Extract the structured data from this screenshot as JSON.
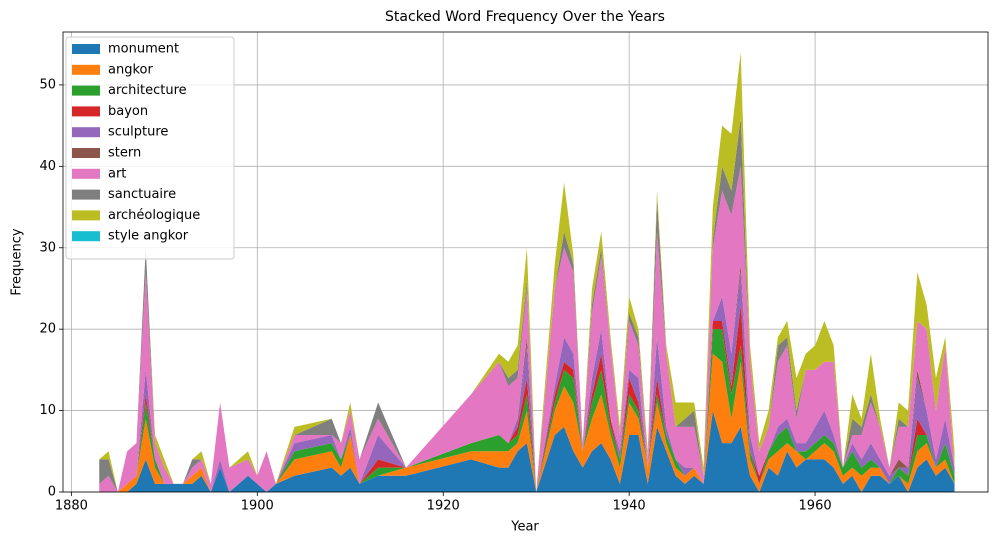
{
  "chart_data": {
    "type": "area",
    "stacked": true,
    "title": "Stacked Word Frequency Over the Years",
    "x_label": "Year",
    "y_label": "Frequency",
    "x": [
      1883,
      1884,
      1885,
      1886,
      1887,
      1888,
      1889,
      1890,
      1891,
      1892,
      1893,
      1894,
      1895,
      1896,
      1897,
      1899,
      1900,
      1901,
      1902,
      1904,
      1908,
      1909,
      1910,
      1911,
      1913,
      1916,
      1923,
      1926,
      1927,
      1928,
      1929,
      1930,
      1932,
      1933,
      1934,
      1935,
      1936,
      1937,
      1938,
      1939,
      1940,
      1941,
      1942,
      1943,
      1944,
      1945,
      1946,
      1947,
      1948,
      1949,
      1950,
      1951,
      1952,
      1953,
      1954,
      1955,
      1956,
      1957,
      1958,
      1959,
      1960,
      1961,
      1962,
      1963,
      1964,
      1965,
      1966,
      1967,
      1968,
      1969,
      1970,
      1971,
      1972,
      1973,
      1974,
      1975
    ],
    "series": [
      {
        "name": "monument",
        "color": "#1f77b4",
        "values": [
          0,
          0,
          0,
          0,
          1,
          4,
          1,
          1,
          1,
          1,
          1,
          2,
          0,
          3,
          0,
          2,
          1,
          0,
          1,
          2,
          3,
          2,
          3,
          1,
          2,
          2,
          4,
          3,
          3,
          5,
          6,
          0,
          7,
          8,
          5,
          3,
          5,
          6,
          4,
          1,
          7,
          7,
          1,
          8,
          5,
          2,
          1,
          2,
          1,
          10,
          6,
          6,
          8,
          2,
          0,
          3,
          2,
          5,
          3,
          4,
          4,
          4,
          3,
          1,
          2,
          0,
          2,
          2,
          1,
          2,
          0,
          3,
          4,
          2,
          3,
          1
        ]
      },
      {
        "name": "angkor",
        "color": "#ff7f0e",
        "values": [
          0,
          0,
          0,
          1,
          1,
          5,
          2,
          0,
          0,
          0,
          1,
          1,
          0,
          0,
          0,
          0,
          0,
          0,
          0,
          2,
          2,
          1,
          4,
          0,
          0,
          1,
          1,
          2,
          2,
          1,
          4,
          0,
          3,
          5,
          6,
          2,
          4,
          6,
          3,
          2,
          4,
          2,
          2,
          3,
          1,
          1,
          1,
          1,
          0,
          7,
          10,
          3,
          8,
          2,
          1,
          1,
          3,
          1,
          2,
          0,
          1,
          2,
          2,
          1,
          1,
          2,
          1,
          1,
          0,
          0,
          1,
          2,
          2,
          1,
          1,
          0
        ]
      },
      {
        "name": "architecture",
        "color": "#2ca02c",
        "values": [
          0,
          0,
          0,
          0,
          0,
          2,
          1,
          0,
          0,
          0,
          0,
          0,
          0,
          0,
          0,
          0,
          0,
          0,
          0,
          1,
          1,
          1,
          0,
          0,
          1,
          0,
          1,
          2,
          1,
          1,
          2,
          0,
          1,
          2,
          3,
          0,
          2,
          3,
          1,
          1,
          1,
          1,
          0,
          1,
          1,
          1,
          0,
          0,
          0,
          3,
          4,
          3,
          2,
          1,
          0,
          1,
          2,
          2,
          0,
          1,
          1,
          1,
          1,
          1,
          2,
          1,
          1,
          0,
          0,
          1,
          1,
          2,
          1,
          0,
          2,
          1
        ]
      },
      {
        "name": "bayon",
        "color": "#d62728",
        "values": [
          0,
          0,
          0,
          0,
          0,
          1,
          0,
          0,
          0,
          0,
          0,
          0,
          0,
          0,
          0,
          0,
          0,
          0,
          0,
          0,
          0,
          0,
          0,
          0,
          1,
          0,
          0,
          0,
          0,
          1,
          2,
          0,
          1,
          1,
          1,
          0,
          1,
          2,
          1,
          0,
          2,
          1,
          0,
          2,
          0,
          0,
          0,
          0,
          0,
          1,
          1,
          1,
          5,
          0,
          1,
          0,
          0,
          0,
          0,
          0,
          0,
          0,
          0,
          0,
          0,
          0,
          0,
          0,
          0,
          0,
          0,
          2,
          0,
          0,
          0,
          0
        ]
      },
      {
        "name": "sculpture",
        "color": "#9467bd",
        "values": [
          0,
          0,
          0,
          0,
          0,
          3,
          0,
          0,
          0,
          0,
          0,
          0,
          0,
          1,
          0,
          0,
          0,
          0,
          0,
          1,
          1,
          0,
          1,
          0,
          3,
          0,
          0,
          0,
          0,
          1,
          4,
          0,
          1,
          3,
          2,
          0,
          2,
          3,
          0,
          1,
          1,
          3,
          0,
          5,
          1,
          0,
          1,
          0,
          0,
          0,
          3,
          4,
          4,
          2,
          0,
          0,
          1,
          1,
          1,
          1,
          2,
          3,
          1,
          0,
          1,
          1,
          2,
          1,
          1,
          0,
          1,
          5,
          3,
          1,
          3,
          1
        ]
      },
      {
        "name": "stern",
        "color": "#8c564b",
        "values": [
          0,
          0,
          0,
          0,
          0,
          0,
          0,
          0,
          0,
          0,
          0,
          0,
          0,
          0,
          0,
          0,
          0,
          0,
          0,
          0,
          0,
          0,
          0,
          0,
          0,
          0,
          0,
          0,
          0,
          0,
          1,
          0,
          0,
          0,
          0,
          0,
          0,
          0,
          0,
          0,
          0,
          0,
          0,
          0,
          0,
          0,
          0,
          0,
          0,
          0,
          0,
          0,
          1,
          0,
          0,
          0,
          0,
          0,
          0,
          0,
          0,
          0,
          0,
          0,
          0,
          0,
          0,
          0,
          0,
          1,
          0,
          1,
          0,
          0,
          0,
          0
        ]
      },
      {
        "name": "art",
        "color": "#e377c2",
        "values": [
          1,
          2,
          0,
          4,
          4,
          12,
          2,
          2,
          0,
          0,
          1,
          1,
          1,
          7,
          3,
          2,
          1,
          5,
          0,
          1,
          0,
          2,
          2,
          3,
          2,
          0,
          6,
          9,
          7,
          5,
          6,
          0,
          12,
          11,
          10,
          1,
          8,
          9,
          9,
          2,
          6,
          4,
          1,
          13,
          9,
          4,
          5,
          5,
          1,
          9,
          13,
          17,
          12,
          9,
          3,
          3,
          8,
          9,
          3,
          9,
          7,
          6,
          9,
          0,
          1,
          3,
          5,
          4,
          1,
          4,
          5,
          6,
          10,
          6,
          9,
          0
        ]
      },
      {
        "name": "sanctuaire",
        "color": "#7f7f7f",
        "values": [
          3,
          2,
          0,
          0,
          0,
          3,
          0,
          0,
          0,
          0,
          1,
          0,
          0,
          0,
          0,
          0,
          0,
          0,
          0,
          0,
          2,
          0,
          0,
          0,
          2,
          0,
          0,
          0,
          1,
          1,
          1,
          0,
          0,
          2,
          1,
          0,
          1,
          1,
          0,
          0,
          1,
          1,
          0,
          4,
          0,
          0,
          1,
          2,
          0,
          1,
          3,
          3,
          6,
          0,
          0,
          0,
          2,
          1,
          1,
          0,
          0,
          0,
          0,
          0,
          2,
          1,
          1,
          0,
          0,
          1,
          0,
          0,
          0,
          0,
          0,
          0
        ]
      },
      {
        "name": "archéologique",
        "color": "#bcbd22",
        "values": [
          0,
          1,
          0,
          0,
          0,
          0,
          1,
          1,
          0,
          0,
          0,
          1,
          0,
          0,
          0,
          1,
          0,
          0,
          0,
          1,
          0,
          0,
          1,
          0,
          0,
          0,
          0,
          1,
          2,
          3,
          4,
          0,
          3,
          6,
          1,
          0,
          2,
          2,
          1,
          1,
          2,
          1,
          1,
          1,
          1,
          3,
          2,
          1,
          1,
          4,
          5,
          7,
          8,
          2,
          1,
          2,
          1,
          2,
          4,
          2,
          3,
          5,
          2,
          0,
          3,
          1,
          5,
          1,
          0,
          2,
          2,
          6,
          3,
          4,
          1,
          2
        ]
      },
      {
        "name": "style angkor",
        "color": "#17becf",
        "values": [
          0,
          0,
          0,
          0,
          0,
          0,
          0,
          0,
          0,
          0,
          0,
          0,
          0,
          0,
          0,
          0,
          0,
          0,
          0,
          0,
          0,
          0,
          0,
          0,
          0,
          0,
          0,
          0,
          0,
          0,
          0,
          0,
          0,
          0,
          0,
          0,
          0,
          0,
          0,
          0,
          0,
          0,
          0,
          0,
          0,
          0,
          0,
          0,
          0,
          0,
          0,
          0,
          0,
          0,
          0,
          0,
          0,
          0,
          0,
          0,
          0,
          0,
          0,
          0,
          0,
          0,
          0,
          0,
          0,
          0,
          0,
          0,
          0,
          0,
          0,
          0
        ]
      }
    ],
    "xlim": [
      1879.1,
      1978.6
    ],
    "ylim": [
      0,
      56.5
    ],
    "xticks": [
      1880,
      1900,
      1920,
      1940,
      1960
    ],
    "yticks": [
      0,
      10,
      20,
      30,
      40,
      50
    ],
    "grid": true,
    "legend": "upper left"
  }
}
